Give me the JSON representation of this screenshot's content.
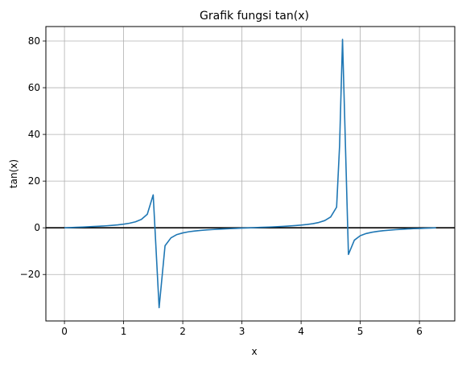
{
  "chart_data": {
    "type": "line",
    "title": "Grafik fungsi tan(x)",
    "xlabel": "x",
    "ylabel": "tan(x)",
    "xlim": [
      -0.314,
      6.597
    ],
    "ylim": [
      -39.9,
      86.2
    ],
    "grid": true,
    "x_ticks": [
      0,
      1,
      2,
      3,
      4,
      5,
      6
    ],
    "y_ticks": [
      -20,
      0,
      20,
      40,
      60,
      80
    ],
    "x_tick_labels": [
      "0",
      "1",
      "2",
      "3",
      "4",
      "5",
      "6"
    ],
    "y_tick_labels": [
      "−20",
      "0",
      "20",
      "40",
      "60",
      "80"
    ],
    "colors": {
      "series": "#1f77b4",
      "zero_line": "#000000",
      "grid": "#b0b0b0"
    },
    "zero_line": {
      "y": 0
    },
    "series": [
      {
        "x": [
          0,
          0.1,
          0.2,
          0.3,
          0.4,
          0.5,
          0.6,
          0.7,
          0.8,
          0.9,
          1.0,
          1.1,
          1.2,
          1.3,
          1.4,
          1.5,
          1.6,
          1.7,
          1.8,
          1.9,
          2.0,
          2.1,
          2.2,
          2.3,
          2.4,
          2.5,
          2.6,
          2.7,
          2.8,
          2.9,
          3.0,
          3.1,
          3.2,
          3.3,
          3.4,
          3.5,
          3.6,
          3.7,
          3.8,
          3.9,
          4.0,
          4.1,
          4.2,
          4.3,
          4.4,
          4.5,
          4.6,
          4.65,
          4.7,
          4.8,
          4.9,
          5.0,
          5.1,
          5.2,
          5.3,
          5.4,
          5.5,
          5.6,
          5.7,
          5.8,
          5.9,
          6.0,
          6.1,
          6.2,
          6.28
        ],
        "y": [
          0,
          0.1,
          0.2,
          0.31,
          0.42,
          0.55,
          0.68,
          0.84,
          1.03,
          1.26,
          1.56,
          1.96,
          2.57,
          3.6,
          5.8,
          14.1,
          -34.2,
          -7.7,
          -4.3,
          -2.9,
          -2.2,
          -1.7,
          -1.37,
          -1.12,
          -0.92,
          -0.75,
          -0.6,
          -0.47,
          -0.36,
          -0.24,
          -0.14,
          -0.04,
          0.06,
          0.16,
          0.26,
          0.37,
          0.49,
          0.62,
          0.77,
          0.96,
          1.16,
          1.42,
          1.78,
          2.29,
          3.1,
          4.64,
          8.86,
          35,
          80.7,
          -11.4,
          -5.3,
          -3.38,
          -2.45,
          -1.89,
          -1.5,
          -1.21,
          -0.99,
          -0.8,
          -0.63,
          -0.49,
          -0.36,
          -0.29,
          -0.18,
          -0.08,
          0
        ]
      }
    ]
  }
}
